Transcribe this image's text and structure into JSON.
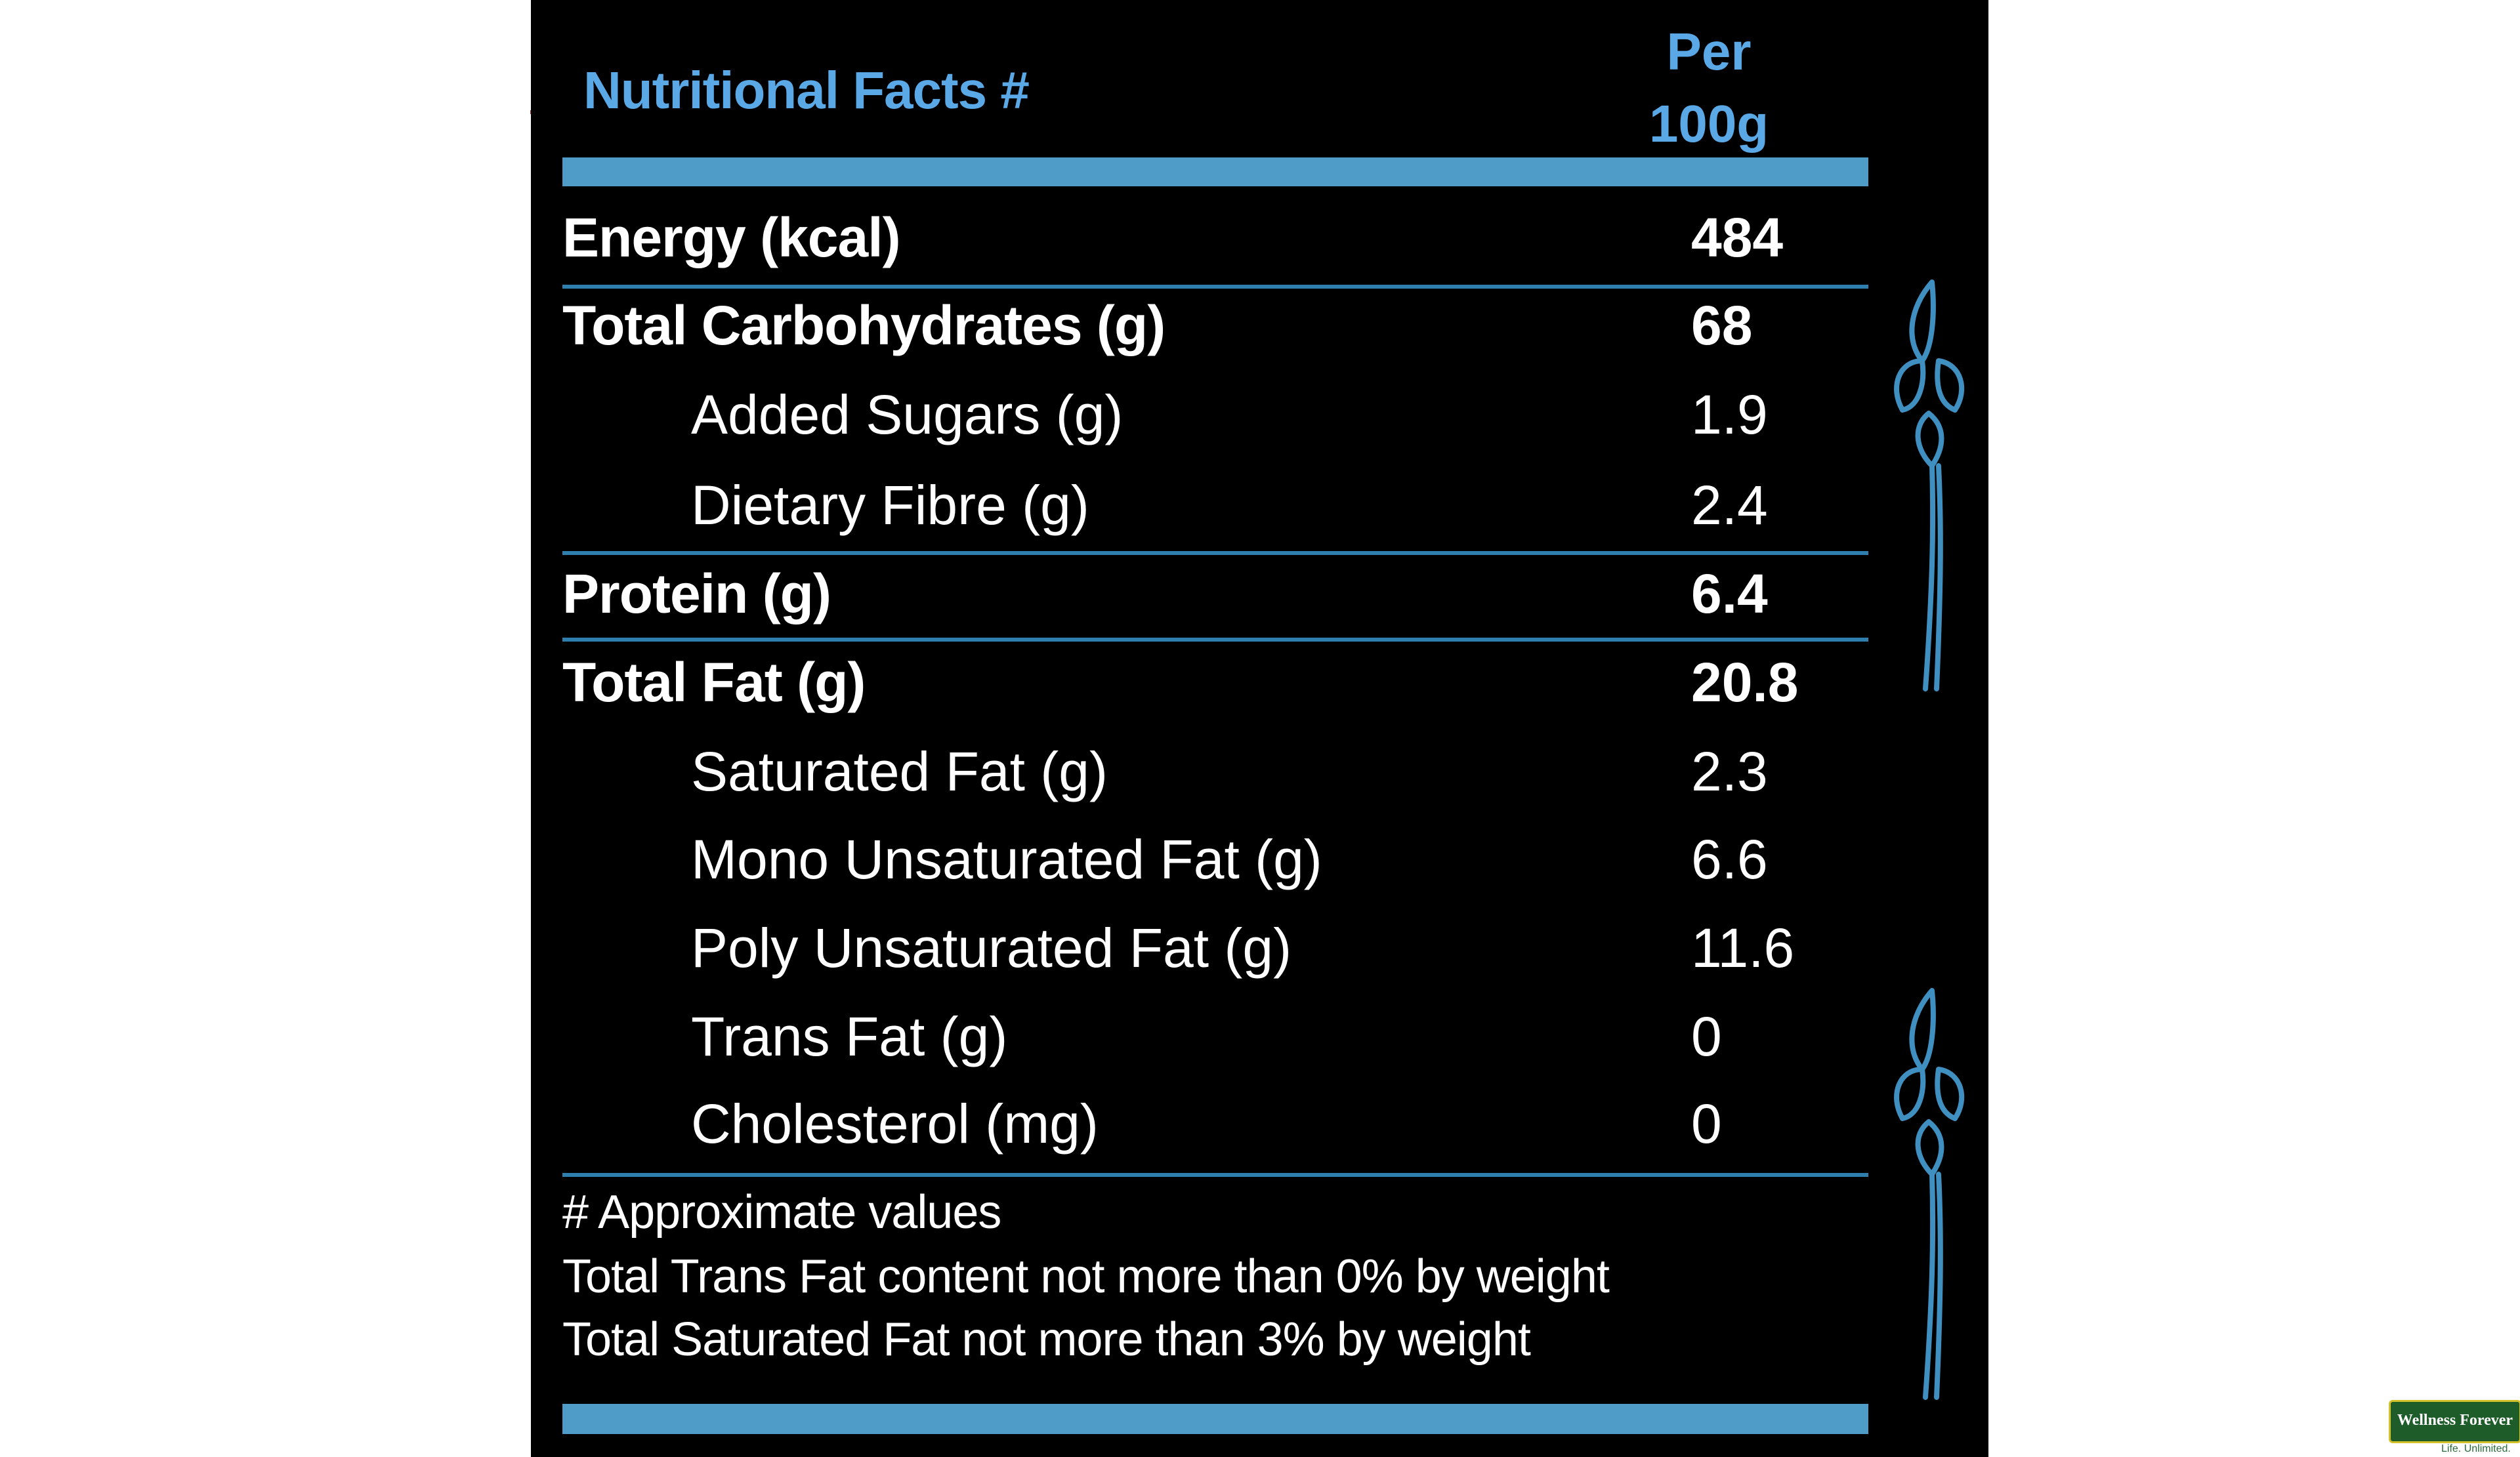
{
  "header": {
    "title": "Nutritional Facts #",
    "per_line1": "Per",
    "per_line2": "100g"
  },
  "rows": [
    {
      "label": "Energy (kcal)",
      "value": "484"
    },
    {
      "label": "Total Carbohydrates (g)",
      "value": "68"
    },
    {
      "label": "Added Sugars (g)",
      "value": "1.9"
    },
    {
      "label": "Dietary Fibre (g)",
      "value": "2.4"
    },
    {
      "label": "Protein (g)",
      "value": "6.4"
    },
    {
      "label": "Total Fat (g)",
      "value": "20.8"
    },
    {
      "label": "Saturated Fat (g)",
      "value": "2.3"
    },
    {
      "label": "Mono Unsaturated Fat (g)",
      "value": "6.6"
    },
    {
      "label": "Poly Unsaturated Fat (g)",
      "value": "11.6"
    },
    {
      "label": "Trans Fat (g)",
      "value": "0"
    },
    {
      "label": "Cholesterol (mg)",
      "value": "0"
    }
  ],
  "footnotes": [
    "# Approximate values",
    "Total Trans Fat content not more than 0% by weight",
    "Total Saturated Fat not more than 3% by weight"
  ],
  "logo": {
    "name": "Wellness Forever",
    "tagline": "Life. Unlimited."
  },
  "colors": {
    "accent": "#5aa9e6",
    "bar": "#4e9cc7",
    "rule": "#2f7fae",
    "background": "#000000",
    "text": "#ffffff"
  },
  "icons": [
    "wheat-stalk-icon",
    "wheat-stalk-icon"
  ]
}
